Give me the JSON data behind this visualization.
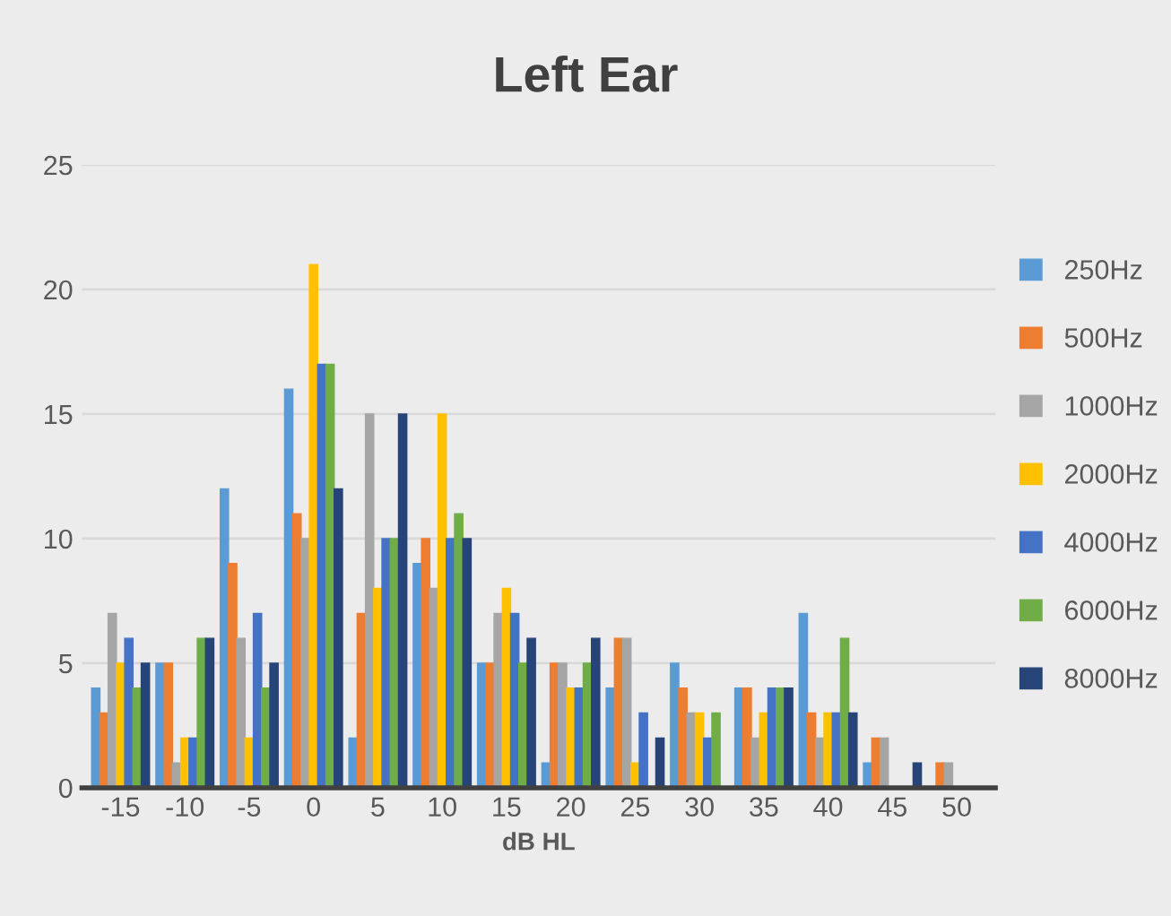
{
  "chart_data": {
    "type": "bar",
    "title": "Left Ear",
    "xlabel": "dB HL",
    "categories": [
      "-15",
      "-10",
      "-5",
      "0",
      "5",
      "10",
      "15",
      "20",
      "25",
      "30",
      "35",
      "40",
      "45",
      "50"
    ],
    "series": [
      {
        "name": "250Hz",
        "color": "#5b9bd5",
        "values": [
          4,
          5,
          12,
          16,
          2,
          9,
          5,
          1,
          4,
          5,
          4,
          7,
          1,
          0
        ]
      },
      {
        "name": "500Hz",
        "color": "#ed7d31",
        "values": [
          3,
          5,
          9,
          11,
          7,
          10,
          5,
          5,
          6,
          4,
          4,
          3,
          2,
          1
        ]
      },
      {
        "name": "1000Hz",
        "color": "#a5a5a5",
        "values": [
          7,
          1,
          6,
          10,
          15,
          8,
          7,
          5,
          6,
          3,
          2,
          2,
          2,
          1
        ]
      },
      {
        "name": "2000Hz",
        "color": "#ffc000",
        "values": [
          5,
          2,
          2,
          21,
          8,
          15,
          8,
          4,
          1,
          3,
          3,
          3,
          0,
          0
        ]
      },
      {
        "name": "4000Hz",
        "color": "#4472c4",
        "values": [
          6,
          2,
          7,
          17,
          10,
          10,
          7,
          4,
          3,
          2,
          4,
          3,
          0,
          0
        ]
      },
      {
        "name": "6000Hz",
        "color": "#70ad47",
        "values": [
          4,
          6,
          4,
          17,
          10,
          11,
          5,
          5,
          0,
          3,
          4,
          6,
          0,
          0
        ]
      },
      {
        "name": "8000Hz",
        "color": "#264478",
        "values": [
          5,
          6,
          5,
          12,
          15,
          10,
          6,
          6,
          2,
          0,
          4,
          3,
          1,
          0
        ]
      }
    ],
    "ylim": [
      0,
      25
    ],
    "yticks": [
      0,
      5,
      10,
      15,
      20,
      25
    ],
    "grid": "y",
    "legend": "right"
  }
}
